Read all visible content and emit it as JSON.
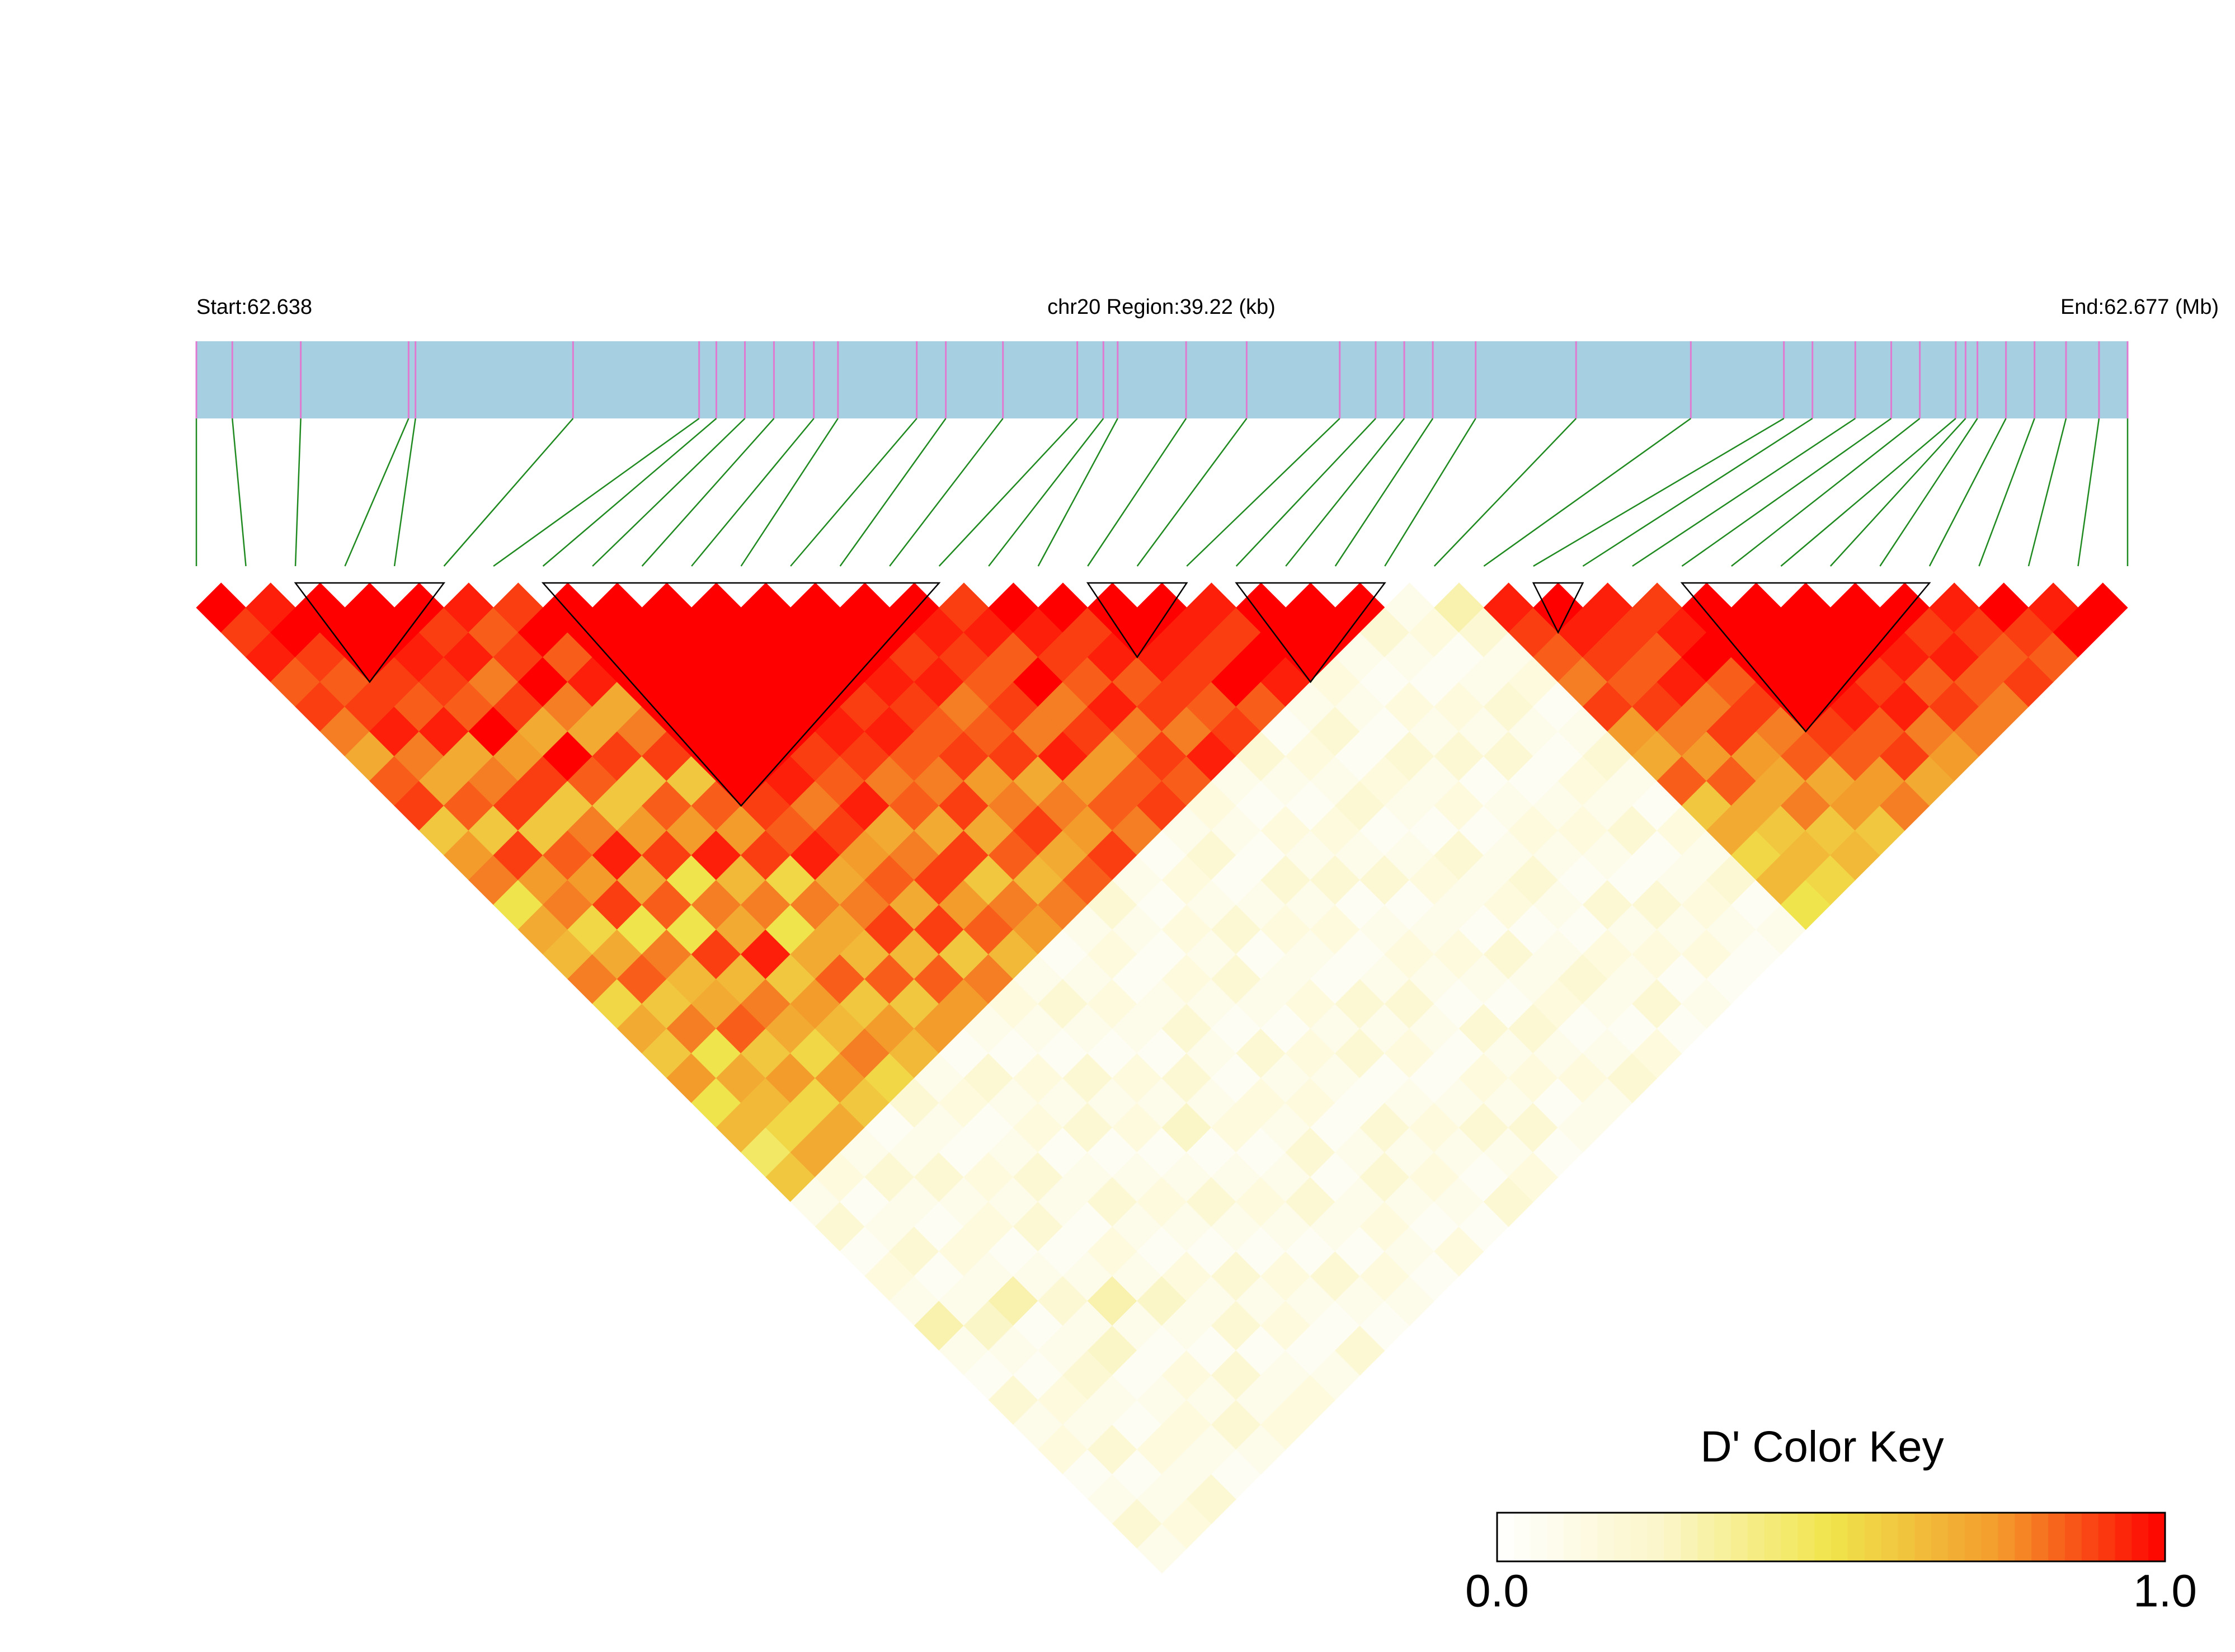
{
  "chart_data": {
    "type": "ld_heatmap",
    "start_label": "Start:62.638",
    "region_label": "chr20 Region:39.22 (kb)",
    "end_label": "End:62.677 (Mb)",
    "key_title": "D' Color Key",
    "xlim": [
      0,
      39.22
    ],
    "positions": [
      0,
      0.73,
      2.12,
      4.31,
      4.45,
      7.65,
      10.21,
      10.56,
      11.14,
      11.73,
      12.54,
      13.03,
      14.63,
      15.22,
      16.38,
      17.89,
      18.42,
      18.71,
      20.1,
      21.33,
      23.22,
      23.95,
      24.53,
      25.11,
      25.98,
      28.02,
      30.35,
      32.24,
      32.82,
      33.69,
      34.42,
      35.0,
      35.73,
      35.93,
      36.17,
      36.75,
      37.33,
      37.97,
      38.64,
      39.22
    ],
    "ld": [
      [
        1,
        0.9,
        0.95,
        0.85,
        0.9,
        0.8,
        0.7,
        0.85,
        0.9,
        0.6,
        0.75,
        0.8,
        0.5,
        0.7,
        0.65,
        0.8,
        0.55,
        0.7,
        0.6,
        0.75,
        0.5,
        0.65,
        0.45,
        0.6,
        0.1,
        0.2,
        0.05,
        0.15,
        0.1,
        0.3,
        0.1,
        0.05,
        0.2,
        0.1,
        0.15,
        0.05,
        0.1,
        0.2,
        0.1
      ],
      [
        0.95,
        1,
        0.9,
        0.85,
        0.9,
        0.95,
        0.8,
        0.7,
        0.85,
        0.6,
        0.9,
        0.75,
        0.8,
        0.55,
        0.7,
        0.85,
        0.6,
        0.8,
        0.5,
        0.7,
        0.65,
        0.55,
        0.7,
        0.15,
        0.05,
        0.1,
        0.2,
        0.05,
        0.1,
        0.25,
        0.1,
        0.05,
        0.15,
        0.1,
        0.2,
        0.05,
        0.1,
        0.15
      ],
      [
        1,
        1,
        1,
        0.9,
        0.85,
        0.95,
        0.7,
        0.8,
        0.9,
        0.6,
        0.85,
        0.75,
        0.9,
        0.5,
        0.8,
        0.65,
        0.7,
        0.85,
        0.6,
        0.75,
        0.55,
        0.7,
        0.1,
        0.2,
        0.1,
        0.05,
        0.15,
        0.1,
        0.3,
        0.05,
        0.1,
        0.2,
        0.1,
        0.05,
        0.15,
        0.1,
        0.2
      ],
      [
        1,
        1,
        0.95,
        0.9,
        0.85,
        1,
        0.75,
        0.9,
        0.6,
        0.8,
        0.95,
        0.7,
        0.85,
        0.5,
        0.9,
        0.65,
        0.8,
        0.7,
        0.55,
        0.75,
        0.6,
        0.05,
        0.1,
        0.2,
        0.1,
        0.15,
        0.05,
        0.1,
        0.2,
        0.1,
        0.25,
        0.05,
        0.1,
        0.15,
        0.1,
        0.05
      ],
      [
        1,
        0.9,
        0.95,
        0.8,
        0.9,
        0.7,
        1,
        0.85,
        0.6,
        0.75,
        0.9,
        0.5,
        0.8,
        0.7,
        0.95,
        0.6,
        0.75,
        0.65,
        0.8,
        0.55,
        0.2,
        0.1,
        0.05,
        0.15,
        0.1,
        0.2,
        0.05,
        0.1,
        0.3,
        0.1,
        0.05,
        0.15,
        0.1,
        0.2,
        0.1
      ],
      [
        0.95,
        0.85,
        0.9,
        1,
        0.8,
        0.7,
        0.9,
        0.6,
        0.85,
        0.75,
        0.95,
        0.65,
        0.8,
        0.5,
        0.7,
        0.85,
        0.6,
        0.75,
        0.65,
        0.1,
        0.15,
        0.05,
        0.1,
        0.2,
        0.1,
        0.05,
        0.15,
        0.1,
        0.25,
        0.1,
        0.05,
        0.2,
        0.1,
        0.15
      ],
      [
        0.9,
        1,
        0.85,
        0.95,
        0.7,
        0.8,
        0.9,
        0.6,
        0.85,
        0.75,
        0.9,
        0.55,
        0.8,
        0.7,
        0.65,
        0.85,
        0.6,
        0.75,
        0.05,
        0.2,
        0.1,
        0.15,
        0.05,
        0.1,
        0.2,
        0.1,
        0.05,
        0.15,
        0.1,
        0.2,
        0.05,
        0.1,
        0.15
      ],
      [
        1,
        1,
        1,
        1,
        1,
        1,
        1,
        1,
        0.9,
        0.85,
        0.95,
        0.7,
        0.8,
        0.9,
        0.65,
        0.85,
        0.75,
        0.1,
        0.05,
        0.15,
        0.1,
        0.2,
        0.05,
        0.1,
        0.15,
        0.1,
        0.05,
        0.2,
        0.1,
        0.15,
        0.05,
        0.1
      ],
      [
        1,
        1,
        1,
        1,
        1,
        1,
        1,
        0.95,
        0.8,
        0.9,
        0.75,
        0.85,
        0.7,
        0.9,
        0.6,
        0.8,
        0.15,
        0.1,
        0.05,
        0.2,
        0.1,
        0.15,
        0.05,
        0.1,
        0.2,
        0.1,
        0.05,
        0.15,
        0.1,
        0.05,
        0.2
      ],
      [
        1,
        1,
        1,
        1,
        1,
        1,
        0.9,
        0.85,
        0.95,
        0.7,
        0.8,
        0.9,
        0.75,
        0.85,
        0.65,
        0.1,
        0.2,
        0.1,
        0.05,
        0.15,
        0.1,
        0.25,
        0.05,
        0.1,
        0.15,
        0.1,
        0.05,
        0.2,
        0.1,
        0.05
      ],
      [
        1,
        1,
        1,
        1,
        1,
        0.95,
        0.9,
        0.8,
        0.85,
        0.7,
        0.9,
        0.6,
        0.8,
        0.75,
        0.05,
        0.1,
        0.15,
        0.1,
        0.05,
        0.2,
        0.1,
        0.15,
        0.05,
        0.1,
        0.2,
        0.1,
        0.05,
        0.15,
        0.1
      ],
      [
        1,
        1,
        1,
        1,
        0.9,
        0.95,
        0.85,
        0.8,
        0.9,
        0.7,
        0.85,
        0.65,
        0.8,
        0.1,
        0.15,
        0.05,
        0.1,
        0.2,
        0.1,
        0.05,
        0.15,
        0.1,
        0.2,
        0.05,
        0.1,
        0.15,
        0.1,
        0.05
      ],
      [
        1,
        1,
        1,
        0.95,
        0.9,
        0.85,
        0.9,
        0.75,
        0.8,
        0.9,
        0.7,
        0.85,
        0.2,
        0.1,
        0.05,
        0.15,
        0.1,
        0.05,
        0.2,
        0.1,
        0.15,
        0.05,
        0.1,
        0.2,
        0.1,
        0.05,
        0.15
      ],
      [
        1,
        1,
        0.9,
        0.95,
        0.8,
        0.85,
        0.9,
        0.7,
        0.8,
        0.75,
        0.9,
        0.1,
        0.05,
        0.15,
        0.1,
        0.2,
        0.1,
        0.05,
        0.15,
        0.1,
        0.05,
        0.2,
        0.1,
        0.15,
        0.1,
        0.05
      ],
      [
        1,
        0.95,
        0.9,
        0.85,
        0.9,
        0.8,
        0.95,
        0.75,
        0.85,
        0.8,
        0.05,
        0.15,
        0.1,
        0.2,
        0.05,
        0.1,
        0.15,
        0.1,
        0.2,
        0.05,
        0.1,
        0.15,
        0.1,
        0.05,
        0.2
      ],
      [
        0.9,
        0.95,
        0.85,
        1,
        0.8,
        0.9,
        0.75,
        0.85,
        0.9,
        0.1,
        0.2,
        0.05,
        0.1,
        0.15,
        0.1,
        0.05,
        0.2,
        0.1,
        0.15,
        0.05,
        0.1,
        0.2,
        0.1,
        0.15
      ],
      [
        1,
        0.95,
        0.9,
        0.85,
        0.95,
        0.8,
        0.9,
        0.85,
        0.15,
        0.1,
        0.05,
        0.2,
        0.1,
        0.15,
        0.05,
        0.1,
        0.2,
        0.1,
        0.05,
        0.15,
        0.1,
        0.2,
        0.05
      ],
      [
        1,
        0.9,
        0.95,
        0.85,
        0.9,
        0.8,
        0.95,
        0.1,
        0.05,
        0.15,
        0.1,
        0.2,
        0.05,
        0.1,
        0.15,
        0.1,
        0.05,
        0.2,
        0.1,
        0.15,
        0.05,
        0.1
      ],
      [
        1,
        1,
        0.95,
        0.9,
        0.85,
        0.9,
        0.2,
        0.1,
        0.05,
        0.15,
        0.1,
        0.2,
        0.05,
        0.1,
        0.15,
        0.1,
        0.05,
        0.2,
        0.1,
        0.15,
        0.1
      ],
      [
        1,
        0.95,
        0.9,
        1,
        0.85,
        0.05,
        0.15,
        0.1,
        0.2,
        0.05,
        0.1,
        0.15,
        0.1,
        0.05,
        0.2,
        0.1,
        0.15,
        0.05,
        0.1,
        0.2
      ],
      [
        0.95,
        0.9,
        1,
        0.95,
        0.1,
        0.2,
        0.05,
        0.15,
        0.1,
        0.05,
        0.2,
        0.1,
        0.15,
        0.05,
        0.1,
        0.2,
        0.1,
        0.05,
        0.15
      ],
      [
        1,
        1,
        1,
        0.15,
        0.1,
        0.05,
        0.2,
        0.1,
        0.15,
        0.05,
        0.1,
        0.2,
        0.1,
        0.05,
        0.15,
        0.1,
        0.2,
        0.05
      ],
      [
        1,
        1,
        0.1,
        0.05,
        0.15,
        0.1,
        0.2,
        0.05,
        0.1,
        0.15,
        0.1,
        0.05,
        0.2,
        0.1,
        0.15,
        0.05,
        0.1
      ],
      [
        1,
        0.2,
        0.1,
        0.05,
        0.15,
        0.1,
        0.2,
        0.05,
        0.1,
        0.15,
        0.1,
        0.05,
        0.2,
        0.1,
        0.15,
        0.05
      ],
      [
        0.1,
        0.15,
        0.05,
        0.1,
        0.2,
        0.1,
        0.05,
        0.15,
        0.1,
        0.2,
        0.05,
        0.1,
        0.15,
        0.1,
        0.05
      ],
      [
        0.3,
        0.2,
        0.1,
        0.15,
        0.05,
        0.1,
        0.2,
        0.1,
        0.05,
        0.15,
        0.1,
        0.2,
        0.05,
        0.1
      ],
      [
        0.95,
        0.9,
        0.85,
        0.8,
        0.9,
        0.75,
        0.7,
        0.85,
        0.6,
        0.7,
        0.55,
        0.65,
        0.5
      ],
      [
        1,
        0.95,
        0.9,
        0.85,
        0.9,
        0.8,
        0.75,
        0.85,
        0.7,
        0.6,
        0.65,
        0.55
      ],
      [
        0.95,
        0.9,
        0.85,
        0.95,
        0.8,
        0.9,
        0.75,
        0.7,
        0.8,
        0.6,
        0.65
      ],
      [
        0.9,
        0.95,
        1,
        0.85,
        0.9,
        0.8,
        0.85,
        0.7,
        0.75,
        0.6
      ],
      [
        1,
        1,
        1,
        1,
        1,
        0.9,
        0.85,
        0.75,
        0.8
      ],
      [
        1,
        1,
        1,
        1,
        0.95,
        0.85,
        0.9,
        0.7
      ],
      [
        1,
        1,
        1,
        0.9,
        0.95,
        0.8,
        0.75
      ],
      [
        1,
        1,
        0.95,
        0.85,
        0.9,
        0.8
      ],
      [
        1,
        0.9,
        0.95,
        0.85,
        0.8
      ],
      [
        0.95,
        0.9,
        0.85,
        0.9
      ],
      [
        1,
        0.9,
        0.85
      ],
      [
        0.95,
        1
      ],
      [
        1
      ]
    ],
    "blocks": [
      [
        2,
        5
      ],
      [
        7,
        15
      ],
      [
        18,
        20
      ],
      [
        21,
        24
      ],
      [
        27,
        28
      ],
      [
        30,
        35
      ]
    ],
    "clim": [
      0,
      1
    ],
    "colors": [
      "#ffffff",
      "#fbf6c8",
      "#f0e44c",
      "#f39c2c",
      "#ff0000"
    ],
    "keyticks": [
      {
        "value": 0,
        "label": "0.0"
      },
      {
        "value": 1,
        "label": "1.0"
      }
    ],
    "bar_color": "#a6cfe2",
    "snp_line_color": "#e07ad0",
    "connector_color": "#1f8a1f",
    "block_color": "#000000"
  }
}
